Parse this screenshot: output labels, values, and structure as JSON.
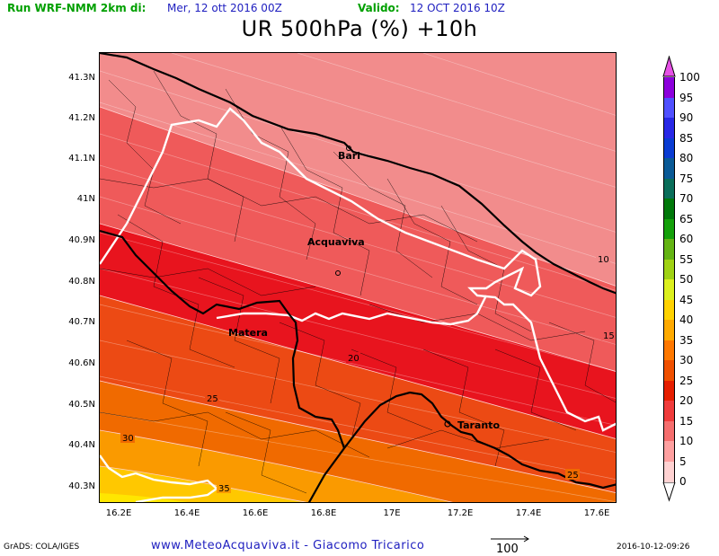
{
  "header": {
    "run_label": "Run WRF-NMM 2km di:",
    "run_date": "Mer, 12 ott 2016 00Z",
    "valid_label": "Valido:",
    "valid_date": "12 OCT 2016 10Z",
    "title": "UR 500hPa (%) +10h"
  },
  "map": {
    "lat_labels": [
      "41.3N",
      "41.2N",
      "41.1N",
      "41N",
      "40.9N",
      "40.8N",
      "40.7N",
      "40.6N",
      "40.5N",
      "40.4N",
      "40.3N"
    ],
    "lon_labels": [
      "16.2E",
      "16.4E",
      "16.6E",
      "16.8E",
      "17E",
      "17.2E",
      "17.4E",
      "17.6E"
    ],
    "cities": [
      "Bari",
      "Acquaviva",
      "Matera",
      "Taranto"
    ],
    "contour_labels": [
      "10",
      "15",
      "20",
      "25",
      "30",
      "35",
      "25"
    ]
  },
  "colorbar": {
    "levels": [
      "100",
      "95",
      "90",
      "85",
      "80",
      "75",
      "70",
      "65",
      "60",
      "55",
      "50",
      "45",
      "40",
      "35",
      "30",
      "25",
      "20",
      "15",
      "10",
      "5",
      "0"
    ],
    "colors": [
      "#6e00c8",
      "#8c00dc",
      "#5050ff",
      "#2828e6",
      "#0a3cd2",
      "#0a5a96",
      "#0a6e5a",
      "#00780a",
      "#14a00a",
      "#64b414",
      "#a0d214",
      "#dcf01e",
      "#ffd200",
      "#ffaa00",
      "#ff7800",
      "#f05000",
      "#e61e00",
      "#f03c3c",
      "#f56e6e",
      "#ffa0a0",
      "#ffd2d2"
    ],
    "top_arrow_color": "#e650e6"
  },
  "footer": {
    "grads": "GrADS: COLA/IGES",
    "site": "www.MeteoAcquaviva.it  -  Giacomo Tricarico",
    "vector_ref": "100",
    "timestamp": "2016-10-12-09:26"
  }
}
